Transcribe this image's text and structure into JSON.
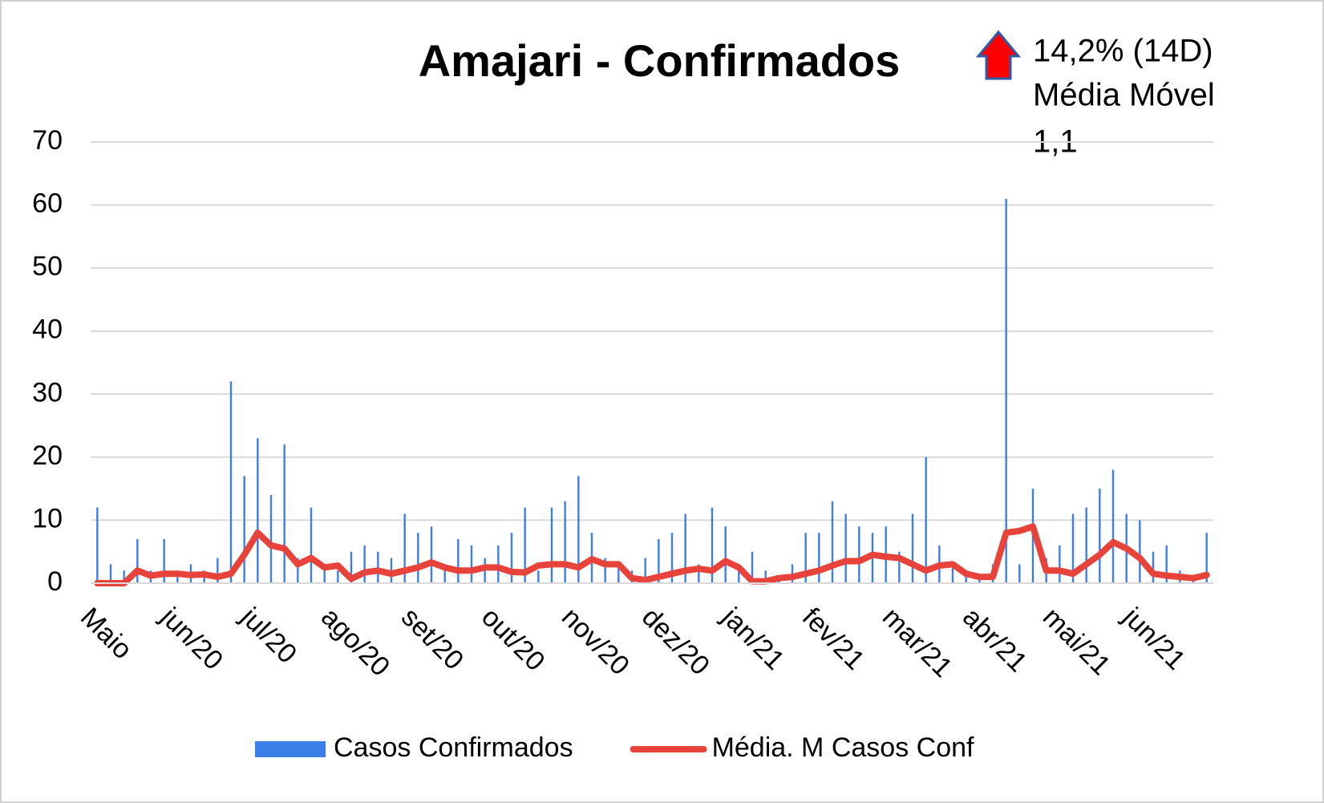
{
  "chart_data": {
    "type": "bar-line",
    "title": "Amajari - Confirmados",
    "annotation": [
      "14,2% (14D)",
      "Média Móvel",
      "1,1"
    ],
    "categories": [
      "Maio",
      null,
      null,
      null,
      null,
      null,
      "jun/20",
      null,
      null,
      null,
      null,
      null,
      "jul/20",
      null,
      null,
      null,
      null,
      null,
      "ago/20",
      null,
      null,
      null,
      null,
      null,
      "set/20",
      null,
      null,
      null,
      null,
      null,
      "out/20",
      null,
      null,
      null,
      null,
      null,
      "nov/20",
      null,
      null,
      null,
      null,
      null,
      "dez/20",
      null,
      null,
      null,
      null,
      null,
      "jan/21",
      null,
      null,
      null,
      null,
      null,
      "fev/21",
      null,
      null,
      null,
      null,
      null,
      "mar/21",
      null,
      null,
      null,
      null,
      null,
      "abr/21",
      null,
      null,
      null,
      null,
      null,
      "mai/21",
      null,
      null,
      null,
      null,
      null,
      "jun/21",
      null,
      null,
      null,
      null,
      null
    ],
    "series": [
      {
        "name": "Casos Confirmados",
        "color": "#3c7ee8",
        "kind": "bar",
        "values": [
          12,
          3,
          2,
          7,
          2,
          7,
          2,
          3,
          2,
          4,
          32,
          17,
          23,
          14,
          22,
          4,
          12,
          3,
          2,
          5,
          6,
          5,
          4,
          11,
          8,
          9,
          3,
          7,
          6,
          4,
          6,
          8,
          12,
          2,
          12,
          13,
          17,
          8,
          4,
          3,
          2,
          4,
          7,
          8,
          11,
          3,
          12,
          9,
          3,
          5,
          2,
          1,
          3,
          8,
          8,
          13,
          11,
          9,
          8,
          9,
          5,
          11,
          20,
          6,
          3,
          1,
          1,
          3,
          61,
          3,
          15,
          4,
          6,
          11,
          12,
          15,
          18,
          11,
          10,
          5,
          6,
          2,
          1,
          8
        ]
      },
      {
        "name": "Média. M Casos Conf",
        "color": "#e8433a",
        "kind": "line",
        "values": [
          0,
          0,
          0,
          2,
          1.2,
          1.5,
          1.5,
          1.3,
          1.4,
          1,
          1.5,
          4.5,
          8,
          6,
          5.5,
          3,
          4,
          2.5,
          2.8,
          0.7,
          1.7,
          2,
          1.5,
          2,
          2.5,
          3.3,
          2.5,
          2,
          2,
          2.5,
          2.5,
          1.8,
          1.7,
          2.8,
          3,
          3,
          2.5,
          3.8,
          3,
          3,
          0.8,
          0.5,
          1,
          1.5,
          2,
          2.3,
          2,
          3.5,
          2.5,
          0.3,
          0.3,
          0.8,
          1,
          1.5,
          2,
          2.8,
          3.5,
          3.5,
          4.5,
          4.2,
          4,
          3,
          2,
          2.8,
          3,
          1.5,
          1,
          1,
          8,
          8.3,
          9,
          2,
          2,
          1.5,
          3,
          4.5,
          6.5,
          5.5,
          4,
          1.5,
          1.2,
          1,
          0.8,
          1.3
        ]
      }
    ],
    "ylim": [
      0,
      70
    ],
    "yticks": [
      0,
      10,
      20,
      30,
      40,
      50,
      60,
      70
    ],
    "grid": true
  }
}
